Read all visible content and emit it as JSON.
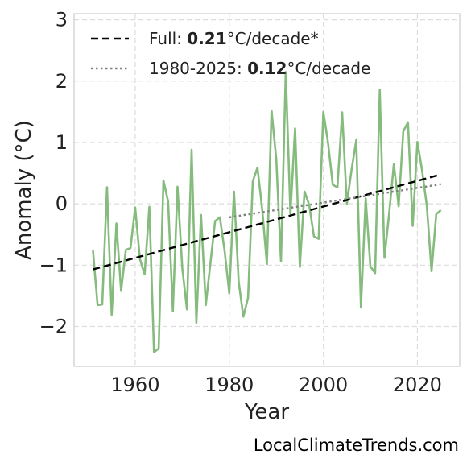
{
  "chart_data": {
    "type": "line",
    "xlabel": "Year",
    "ylabel": "Anomaly (°C)",
    "xlim": [
      1947,
      2029
    ],
    "ylim": [
      -2.65,
      3.1
    ],
    "grid": true,
    "legend_position": "top-left",
    "x_ticks": [
      1960,
      1980,
      2000,
      2020
    ],
    "x_tick_labels": [
      "1960",
      "1980",
      "2000",
      "2020"
    ],
    "y_ticks": [
      3,
      2,
      1,
      0,
      -1,
      -2
    ],
    "y_tick_labels": [
      "3",
      "2",
      "1",
      "0",
      "−1",
      "−2"
    ],
    "series": [
      {
        "color": "#86bb7e",
        "style": "solid",
        "x": [
          1951,
          1952,
          1953,
          1954,
          1955,
          1956,
          1957,
          1958,
          1959,
          1960,
          1961,
          1962,
          1963,
          1964,
          1965,
          1966,
          1967,
          1968,
          1969,
          1970,
          1971,
          1972,
          1973,
          1974,
          1975,
          1976,
          1977,
          1978,
          1979,
          1980,
          1981,
          1982,
          1983,
          1984,
          1985,
          1986,
          1987,
          1988,
          1989,
          1990,
          1991,
          1992,
          1993,
          1994,
          1995,
          1996,
          1997,
          1998,
          1999,
          2000,
          2001,
          2002,
          2003,
          2004,
          2005,
          2006,
          2007,
          2008,
          2009,
          2010,
          2011,
          2012,
          2013,
          2014,
          2015,
          2016,
          2017,
          2018,
          2019,
          2020,
          2021,
          2022,
          2023,
          2024,
          2025
        ],
        "y": [
          -0.75,
          -1.65,
          -1.64,
          0.27,
          -1.81,
          -0.32,
          -1.42,
          -0.75,
          -0.72,
          -0.06,
          -0.9,
          -1.15,
          -0.05,
          -2.42,
          -2.36,
          0.38,
          0.04,
          -1.75,
          0.28,
          -1.05,
          -1.72,
          0.88,
          -1.94,
          -0.18,
          -1.65,
          -0.96,
          -0.28,
          -0.22,
          -0.76,
          -1.46,
          0.2,
          -1.28,
          -1.84,
          -1.53,
          0.37,
          0.59,
          -0.09,
          -0.98,
          1.52,
          0.72,
          -0.94,
          2.15,
          -0.16,
          1.23,
          -1.03,
          0.2,
          -0.02,
          -0.53,
          -0.57,
          1.5,
          1.0,
          0.31,
          0.27,
          1.49,
          0.0,
          0.55,
          1.04,
          -1.69,
          0.09,
          -1.02,
          -1.13,
          1.86,
          -0.88,
          -0.15,
          0.65,
          -0.04,
          1.18,
          1.33,
          -0.36,
          1.01,
          0.54,
          -0.03,
          -1.1,
          -0.17,
          -0.1
        ]
      },
      {
        "name": "Full: 0.21°C/decade*",
        "color": "#000000",
        "style": "dashed",
        "x": [
          1951,
          2025
        ],
        "y": [
          -1.07,
          0.48
        ]
      },
      {
        "name": "1980-2025: 0.12°C/decade",
        "color": "#808080",
        "style": "dotted",
        "x": [
          1980,
          2025
        ],
        "y": [
          -0.22,
          0.32
        ]
      }
    ],
    "legend": [
      {
        "prefix": "Full: ",
        "value": "0.21",
        "suffix": "°C/decade*"
      },
      {
        "prefix": "1980-2025: ",
        "value": "0.12",
        "suffix": "°C/decade"
      }
    ]
  },
  "watermark": "LocalClimateTrends.com"
}
